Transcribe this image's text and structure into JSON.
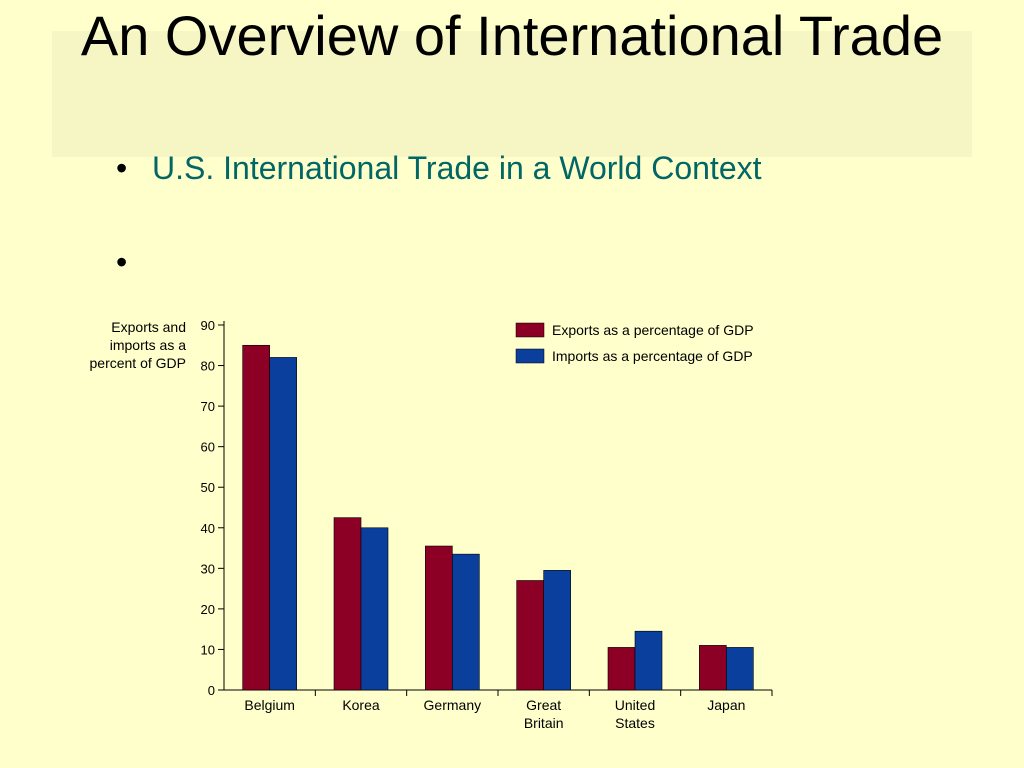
{
  "slide": {
    "title": "An Overview of International Trade",
    "bullets": [
      "U.S. International Trade in a World Context",
      ""
    ]
  },
  "colors": {
    "exports": "#8b0024",
    "imports": "#0a3f9e",
    "background": "#ffffcc",
    "title_band": "#f6f6c4",
    "bullet_text": "#006666"
  },
  "chart_data": {
    "type": "bar",
    "title": "",
    "ylabel": "Exports and imports as a percent of GDP",
    "xlabel": "",
    "ylim": [
      0,
      90
    ],
    "yticks": [
      0,
      10,
      20,
      30,
      40,
      50,
      60,
      70,
      80,
      90
    ],
    "categories": [
      "Belgium",
      "Korea",
      "Germany",
      "Great Britain",
      "United States",
      "Japan"
    ],
    "category_lines": [
      [
        "Belgium"
      ],
      [
        "Korea"
      ],
      [
        "Germany"
      ],
      [
        "Great",
        "Britain"
      ],
      [
        "United",
        "States"
      ],
      [
        "Japan"
      ]
    ],
    "series": [
      {
        "name": "Exports as a percentage of GDP",
        "color": "#8b0024",
        "values": [
          85,
          42.5,
          35.5,
          27,
          10.5,
          11
        ]
      },
      {
        "name": "Imports as a percentage of GDP",
        "color": "#0a3f9e",
        "values": [
          82,
          40,
          33.5,
          29.5,
          14.5,
          10.5
        ]
      }
    ],
    "grid": false,
    "legend_position": "top-right"
  }
}
